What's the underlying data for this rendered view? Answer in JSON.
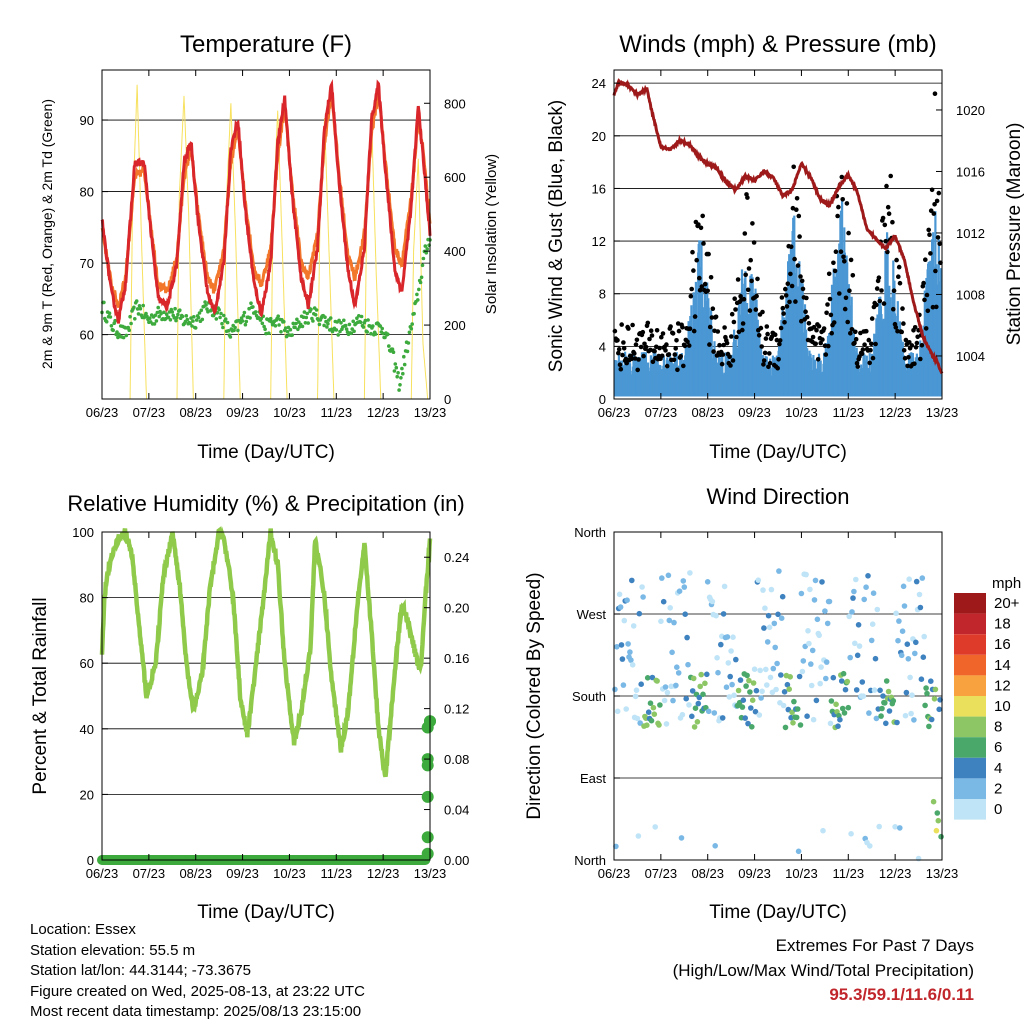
{
  "x_ticks": [
    "06/23",
    "07/23",
    "08/23",
    "09/23",
    "10/23",
    "11/23",
    "12/23",
    "13/23"
  ],
  "xlabel": "Time (Day/UTC)",
  "colors": {
    "t2m": "#d9262b",
    "t9m": "#f2772b",
    "td": "#3daa3d",
    "solar": "#f7e15e",
    "wind": "#4a97d4",
    "gust": "#000000",
    "pressure": "#9e1a1a",
    "rh": "#8fca4a",
    "precip": "#3daa3d"
  },
  "chart_data": [
    {
      "id": "temperature",
      "type": "line",
      "title": "Temperature (F)",
      "xlabel": "Time (Day/UTC)",
      "ylabel": "2m & 9m T (Red, Orange) & 2m Td (Green)",
      "ylabel_right": "Solar Insolation (Yellow)",
      "ylim": [
        51,
        97
      ],
      "yticks": [
        60,
        70,
        80,
        90
      ],
      "ylim_right": [
        0,
        890
      ],
      "yticks_right": [
        0,
        200,
        400,
        600,
        800
      ],
      "series": [
        {
          "key": "t2m",
          "x": [
            0,
            0.2,
            0.35,
            0.5,
            0.7,
            0.9,
            1.05,
            1.2,
            1.4,
            1.6,
            1.75,
            1.9,
            2.05,
            2.25,
            2.4,
            2.6,
            2.75,
            2.9,
            3.05,
            3.25,
            3.4,
            3.6,
            3.75,
            3.9,
            4.05,
            4.25,
            4.4,
            4.6,
            4.75,
            4.9,
            5.05,
            5.25,
            5.4,
            5.6,
            5.75,
            5.9,
            6.05,
            6.25,
            6.4,
            6.6,
            6.75,
            6.85,
            7.0
          ],
          "y": [
            76,
            66,
            62,
            67,
            84,
            84,
            74,
            65,
            64,
            70,
            84,
            87,
            76,
            66,
            63,
            70,
            86,
            90,
            78,
            67,
            63,
            70,
            87,
            93,
            80,
            68,
            64,
            72,
            89,
            95,
            82,
            69,
            64,
            72,
            90,
            95,
            83,
            69,
            66,
            78,
            92,
            85,
            74
          ]
        },
        {
          "key": "t9m",
          "x": [
            0,
            0.2,
            0.35,
            0.5,
            0.7,
            0.9,
            1.05,
            1.2,
            1.4,
            1.6,
            1.75,
            1.9,
            2.05,
            2.25,
            2.4,
            2.6,
            2.75,
            2.9,
            3.05,
            3.25,
            3.4,
            3.6,
            3.75,
            3.9,
            4.05,
            4.25,
            4.4,
            4.6,
            4.75,
            4.9,
            5.05,
            5.25,
            5.4,
            5.6,
            5.75,
            5.9,
            6.05,
            6.25,
            6.4,
            6.6,
            6.75,
            6.85,
            7.0
          ],
          "y": [
            75,
            67,
            64,
            68,
            82,
            83,
            75,
            67,
            66,
            71,
            82,
            86,
            77,
            68,
            66,
            72,
            84,
            89,
            79,
            69,
            67,
            72,
            85,
            92,
            81,
            70,
            68,
            74,
            87,
            94,
            83,
            71,
            68,
            74,
            88,
            94,
            84,
            72,
            70,
            79,
            90,
            86,
            75
          ]
        },
        {
          "key": "td",
          "x": [
            0,
            0.25,
            0.5,
            0.75,
            1,
            1.25,
            1.5,
            1.75,
            2,
            2.25,
            2.5,
            2.75,
            3,
            3.25,
            3.5,
            3.75,
            4,
            4.25,
            4.5,
            4.75,
            5,
            5.25,
            5.5,
            5.75,
            6,
            6.2,
            6.35,
            6.5,
            6.7,
            6.85,
            7.0
          ],
          "y": [
            64,
            61,
            60,
            64,
            62,
            63,
            63,
            62,
            62,
            64,
            63,
            60,
            62,
            64,
            61,
            62,
            60,
            62,
            63,
            62,
            61,
            61,
            62,
            61,
            61,
            57,
            53,
            58,
            64,
            70,
            74
          ]
        },
        {
          "key": "solar",
          "x": [
            0,
            0.3,
            0.6,
            0.65,
            0.75,
            0.85,
            0.95,
            1.3,
            1.6,
            1.65,
            1.75,
            1.85,
            1.95,
            2.3,
            2.6,
            2.65,
            2.75,
            2.85,
            2.95,
            3.3,
            3.6,
            3.65,
            3.75,
            3.85,
            3.95,
            4.3,
            4.6,
            4.65,
            4.75,
            4.85,
            4.95,
            5.3,
            5.6,
            5.65,
            5.75,
            5.85,
            5.95,
            6.3,
            6.6,
            6.65,
            6.75,
            6.85,
            6.95,
            7.0
          ],
          "y": [
            0,
            0,
            0,
            500,
            850,
            400,
            0,
            0,
            0,
            550,
            820,
            500,
            0,
            0,
            0,
            520,
            800,
            450,
            0,
            0,
            0,
            500,
            780,
            400,
            0,
            0,
            0,
            480,
            760,
            380,
            0,
            0,
            0,
            500,
            770,
            350,
            0,
            0,
            0,
            400,
            650,
            150,
            0,
            0
          ]
        }
      ]
    },
    {
      "id": "winds",
      "type": "scatter",
      "title": "Winds (mph) & Pressure (mb)",
      "xlabel": "Time (Day/UTC)",
      "ylabel": "Sonic Wind & Gust (Blue, Black)",
      "ylabel_right": "Station Pressure (Maroon)",
      "ylim": [
        0,
        25
      ],
      "yticks": [
        0,
        4,
        8,
        12,
        16,
        20,
        24
      ],
      "ylim_right": [
        1001.2,
        1022.6
      ],
      "yticks_right": [
        1004,
        1008,
        1012,
        1016,
        1020
      ],
      "peaks": [
        {
          "day": 1.85,
          "wind": 9.0,
          "gust": 14.0
        },
        {
          "day": 2.85,
          "wind": 9.0,
          "gust": 14.0
        },
        {
          "day": 3.85,
          "wind": 10.5,
          "gust": 16.0
        },
        {
          "day": 4.85,
          "wind": 11.0,
          "gust": 17.0
        },
        {
          "day": 5.85,
          "wind": 9.5,
          "gust": 18.0
        },
        {
          "day": 6.85,
          "wind": 11.0,
          "gust": 16.0
        }
      ],
      "series": [
        {
          "key": "pressure",
          "x": [
            0,
            0.1,
            0.3,
            0.5,
            0.7,
            0.8,
            1.0,
            1.2,
            1.4,
            1.6,
            1.8,
            2.0,
            2.2,
            2.4,
            2.6,
            2.8,
            3.0,
            3.2,
            3.4,
            3.6,
            3.8,
            4.0,
            4.2,
            4.4,
            4.6,
            4.8,
            5.0,
            5.2,
            5.4,
            5.6,
            5.8,
            6.0,
            6.2,
            6.4,
            6.6,
            6.7,
            6.8,
            6.9,
            7.0
          ],
          "y": [
            1021.0,
            1021.8,
            1021.6,
            1021.0,
            1021.4,
            1020.0,
            1017.6,
            1017.4,
            1018.0,
            1017.8,
            1017.0,
            1016.5,
            1016.2,
            1015.3,
            1014.8,
            1015.7,
            1015.4,
            1016.0,
            1015.6,
            1014.4,
            1014.8,
            1016.5,
            1015.6,
            1014.2,
            1013.8,
            1015.0,
            1015.8,
            1014.6,
            1012.2,
            1011.6,
            1011.0,
            1011.8,
            1010.2,
            1007.4,
            1005.2,
            1004.6,
            1004.0,
            1003.6,
            1002.8
          ]
        },
        {
          "key": "outlier",
          "x": [
            6.85
          ],
          "y": [
            23.2
          ]
        }
      ]
    },
    {
      "id": "humidity",
      "type": "line",
      "title": "Relative Humidity (%) & Precipitation (in)",
      "xlabel": "Time (Day/UTC)",
      "ylabel": "Percent & Total Rainfall",
      "ylim": [
        0,
        100
      ],
      "yticks": [
        0,
        20,
        40,
        60,
        80,
        100
      ],
      "ylim_right": [
        0,
        0.26
      ],
      "yticks_right": [
        0.0,
        0.04,
        0.08,
        0.12,
        0.16,
        0.2,
        0.24
      ],
      "series": [
        {
          "key": "rh",
          "x": [
            0,
            0.05,
            0.15,
            0.35,
            0.5,
            0.65,
            0.8,
            0.95,
            1.15,
            1.3,
            1.5,
            1.65,
            1.8,
            1.95,
            2.15,
            2.3,
            2.5,
            2.6,
            2.8,
            2.95,
            3.1,
            3.25,
            3.45,
            3.6,
            3.75,
            3.9,
            4.1,
            4.25,
            4.45,
            4.55,
            4.75,
            4.9,
            5.1,
            5.25,
            5.45,
            5.6,
            5.75,
            5.9,
            6.05,
            6.25,
            6.4,
            6.55,
            6.7,
            6.8,
            6.9,
            7.0
          ],
          "y": [
            63,
            80,
            90,
            98,
            100,
            92,
            70,
            50,
            60,
            85,
            100,
            85,
            60,
            45,
            58,
            82,
            100,
            98,
            80,
            50,
            38,
            55,
            80,
            100,
            90,
            60,
            36,
            45,
            65,
            98,
            80,
            55,
            34,
            45,
            78,
            96,
            70,
            40,
            25,
            58,
            78,
            72,
            62,
            58,
            80,
            97
          ]
        },
        {
          "key": "precip",
          "x": [
            0,
            1,
            2,
            3,
            4,
            5,
            6,
            6.85,
            6.95,
            6.95,
            6.95,
            6.95,
            6.95,
            6.95,
            7.0,
            7.0
          ],
          "y": [
            0,
            0,
            0,
            0,
            0,
            0,
            0,
            0,
            0.005,
            0.018,
            0.05,
            0.075,
            0.08,
            0.105,
            0.11,
            0.11
          ]
        }
      ]
    },
    {
      "id": "direction",
      "type": "scatter",
      "title": "Wind Direction",
      "xlabel": "Time (Day/UTC)",
      "ylabel": "Direction (Colored By Speed)",
      "ylim": [
        0,
        360
      ],
      "ytick_values": [
        0,
        90,
        180,
        270,
        360
      ],
      "ytick_labels": [
        "North",
        "East",
        "South",
        "West",
        "North"
      ],
      "colorbar": {
        "unit": "mph",
        "labels": [
          "20+",
          "18",
          "16",
          "14",
          "12",
          "10",
          "8",
          "6",
          "4",
          "2",
          "0"
        ],
        "colors": [
          "#9e1a1a",
          "#c0262b",
          "#de3b2b",
          "#f0652a",
          "#f8a23f",
          "#ebe05c",
          "#8cc665",
          "#4aa86b",
          "#3f82c0",
          "#7ab8e6",
          "#bfe4f7"
        ]
      }
    }
  ],
  "meta": {
    "location": "Location: Essex",
    "elevation": "Station elevation: 55.5 m",
    "latlon": "Station lat/lon: 44.3144; -73.3675",
    "created": "Figure created on Wed, 2025-08-13, at 23:22 UTC",
    "recent": "Most recent data timestamp: 2025/08/13 23:15:00"
  },
  "extremes": {
    "line1": "Extremes For Past 7 Days",
    "line2": "(High/Low/Max Wind/Total Precipitation)",
    "values": "95.3/59.1/11.6/0.11"
  }
}
